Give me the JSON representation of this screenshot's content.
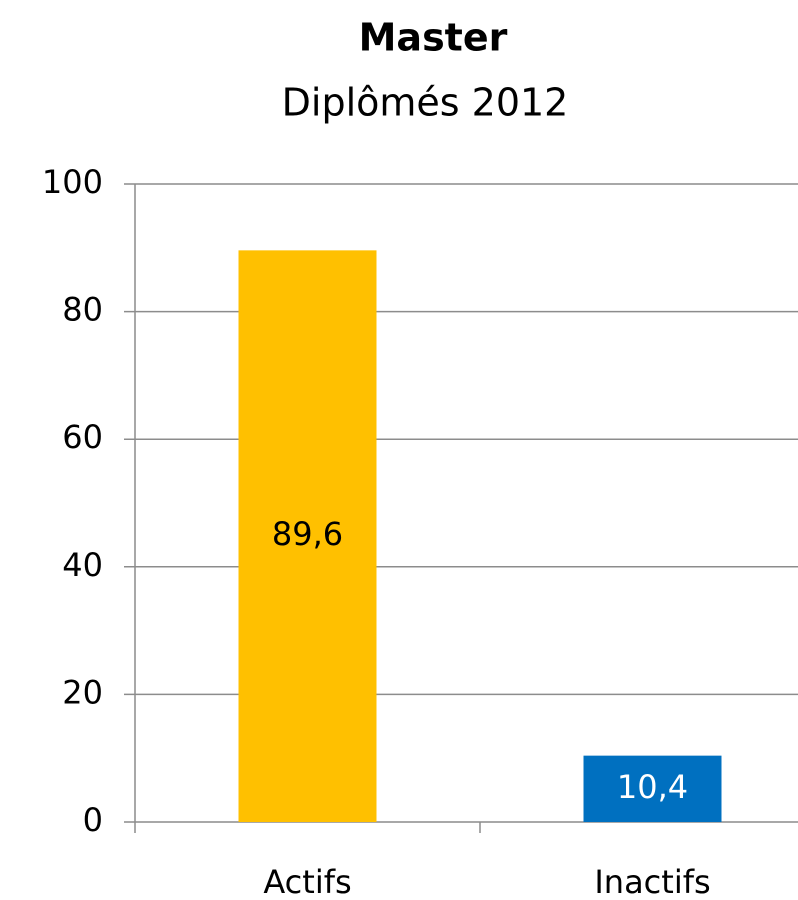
{
  "chart_data": {
    "type": "bar",
    "title": "Master",
    "subtitle": "Diplômés 2012",
    "categories": [
      "Actifs",
      "Inactifs"
    ],
    "values": [
      89.6,
      10.4
    ],
    "value_labels": [
      "89,6",
      "10,4"
    ],
    "colors": [
      "#ffc000",
      "#0070c0"
    ],
    "label_colors": [
      "#000000",
      "#ffffff"
    ],
    "ylim": [
      0,
      100
    ],
    "yticks": [
      0,
      20,
      40,
      60,
      80,
      100
    ],
    "grid": true
  }
}
